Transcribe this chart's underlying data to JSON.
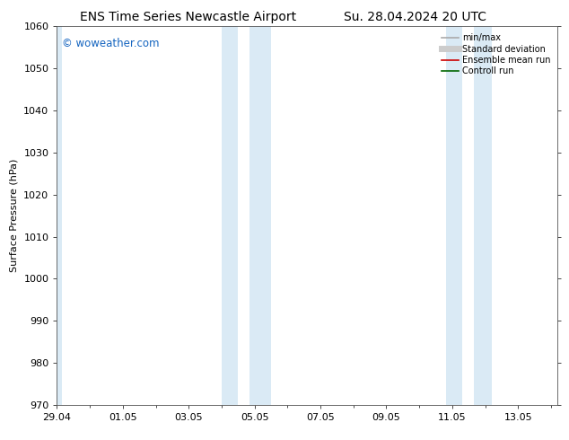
{
  "title_left": "ENS Time Series Newcastle Airport",
  "title_right": "Su. 28.04.2024 20 UTC",
  "ylabel": "Surface Pressure (hPa)",
  "ylim": [
    970,
    1060
  ],
  "yticks": [
    970,
    980,
    990,
    1000,
    1010,
    1020,
    1030,
    1040,
    1050,
    1060
  ],
  "xlim": [
    0,
    15.2
  ],
  "xtick_labels": [
    "29.04",
    "01.05",
    "03.05",
    "05.05",
    "07.05",
    "09.05",
    "11.05",
    "13.05"
  ],
  "xtick_positions": [
    0,
    2,
    4,
    6,
    8,
    10,
    12,
    14
  ],
  "watermark": "© woweather.com",
  "watermark_color": "#1565C0",
  "shaded_regions": [
    {
      "start": 0.0,
      "end": 0.15
    },
    {
      "start": 5.0,
      "end": 5.5
    },
    {
      "start": 5.85,
      "end": 6.5
    },
    {
      "start": 11.8,
      "end": 12.3
    },
    {
      "start": 12.65,
      "end": 13.2
    }
  ],
  "shaded_color": "#daeaf5",
  "legend_items": [
    {
      "label": "min/max",
      "color": "#aaaaaa",
      "lw": 1.2,
      "style": "solid"
    },
    {
      "label": "Standard deviation",
      "color": "#cccccc",
      "lw": 5,
      "style": "solid"
    },
    {
      "label": "Ensemble mean run",
      "color": "#cc0000",
      "lw": 1.2,
      "style": "solid"
    },
    {
      "label": "Controll run",
      "color": "#006600",
      "lw": 1.2,
      "style": "solid"
    }
  ],
  "bg_color": "#ffffff",
  "title_fontsize": 10,
  "axis_fontsize": 8,
  "tick_fontsize": 8,
  "legend_fontsize": 7
}
